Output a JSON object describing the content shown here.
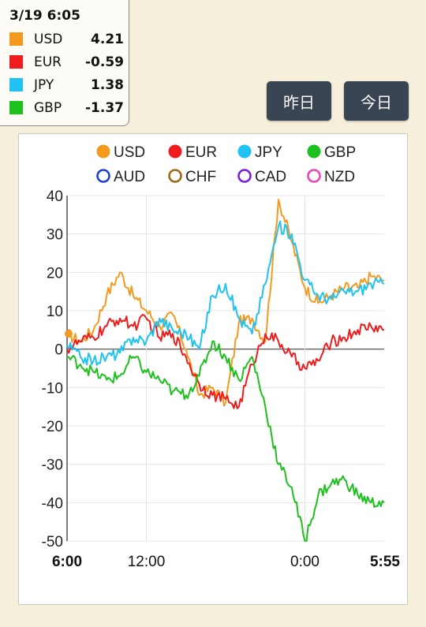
{
  "readout": {
    "timestamp": "3/19 6:05",
    "rows": [
      {
        "currency": "USD",
        "value": "4.21",
        "color": "#f39a1e"
      },
      {
        "currency": "EUR",
        "value": "-0.59",
        "color": "#ee1c1c"
      },
      {
        "currency": "JPY",
        "value": "1.38",
        "color": "#1fc2f0"
      },
      {
        "currency": "GBP",
        "value": "-1.37",
        "color": "#1ec01e"
      }
    ]
  },
  "buttons": {
    "yesterday": "昨日",
    "today": "今日"
  },
  "chart_data": {
    "type": "line",
    "x": [
      "6:00",
      "7:00",
      "8:00",
      "9:00",
      "10:00",
      "11:00",
      "12:00",
      "13:00",
      "14:00",
      "15:00",
      "16:00",
      "17:00",
      "18:00",
      "19:00",
      "20:00",
      "21:00",
      "22:00",
      "23:00",
      "0:00",
      "1:00",
      "2:00",
      "3:00",
      "4:00",
      "5:00",
      "5:55"
    ],
    "x_tick_labels": [
      "6:00",
      "12:00",
      "0:00",
      "5:55"
    ],
    "bold_tick_labels": [
      "6:00",
      "5:55"
    ],
    "ylim": [
      -50,
      40
    ],
    "y_ticks": [
      40,
      30,
      20,
      10,
      0,
      -10,
      -20,
      -30,
      -40,
      -50
    ],
    "grid": true,
    "legend_position": "top",
    "legend": [
      {
        "name": "USD",
        "color": "#f39a1e",
        "filled": true
      },
      {
        "name": "EUR",
        "color": "#ee1c1c",
        "filled": true
      },
      {
        "name": "JPY",
        "color": "#1fc2f0",
        "filled": true
      },
      {
        "name": "GBP",
        "color": "#1ec01e",
        "filled": true
      },
      {
        "name": "AUD",
        "color": "#1f3fd8",
        "filled": false
      },
      {
        "name": "CHF",
        "color": "#9a6a14",
        "filled": false
      },
      {
        "name": "CAD",
        "color": "#7a20d8",
        "filled": false
      },
      {
        "name": "NZD",
        "color": "#ee44b8",
        "filled": false
      }
    ],
    "series": [
      {
        "name": "USD",
        "color": "#f39a1e",
        "values": [
          4,
          2,
          5,
          14,
          20,
          14,
          10,
          6,
          9,
          0,
          -12,
          -10,
          -14,
          7,
          8,
          2,
          39,
          28,
          16,
          12,
          14,
          16,
          16,
          19,
          18
        ]
      },
      {
        "name": "EUR",
        "color": "#ee1c1c",
        "values": [
          0,
          2,
          3,
          6,
          8,
          6,
          8,
          3,
          4,
          -2,
          -9,
          -12,
          -13,
          -15,
          -4,
          4,
          2,
          -2,
          -5,
          -3,
          2,
          3,
          5,
          6,
          5
        ]
      },
      {
        "name": "JPY",
        "color": "#1fc2f0",
        "values": [
          1,
          -2,
          -3,
          -2,
          -1,
          3,
          2,
          8,
          5,
          4,
          0,
          14,
          17,
          8,
          4,
          17,
          32,
          30,
          18,
          14,
          13,
          15,
          15,
          17,
          17
        ]
      },
      {
        "name": "GBP",
        "color": "#1ec01e",
        "values": [
          -2,
          -4,
          -6,
          -8,
          -7,
          -2,
          -6,
          -8,
          -11,
          -12,
          -7,
          2,
          -2,
          -8,
          -2,
          -15,
          -30,
          -36,
          -50,
          -38,
          -35,
          -34,
          -38,
          -40,
          -40
        ]
      }
    ]
  }
}
